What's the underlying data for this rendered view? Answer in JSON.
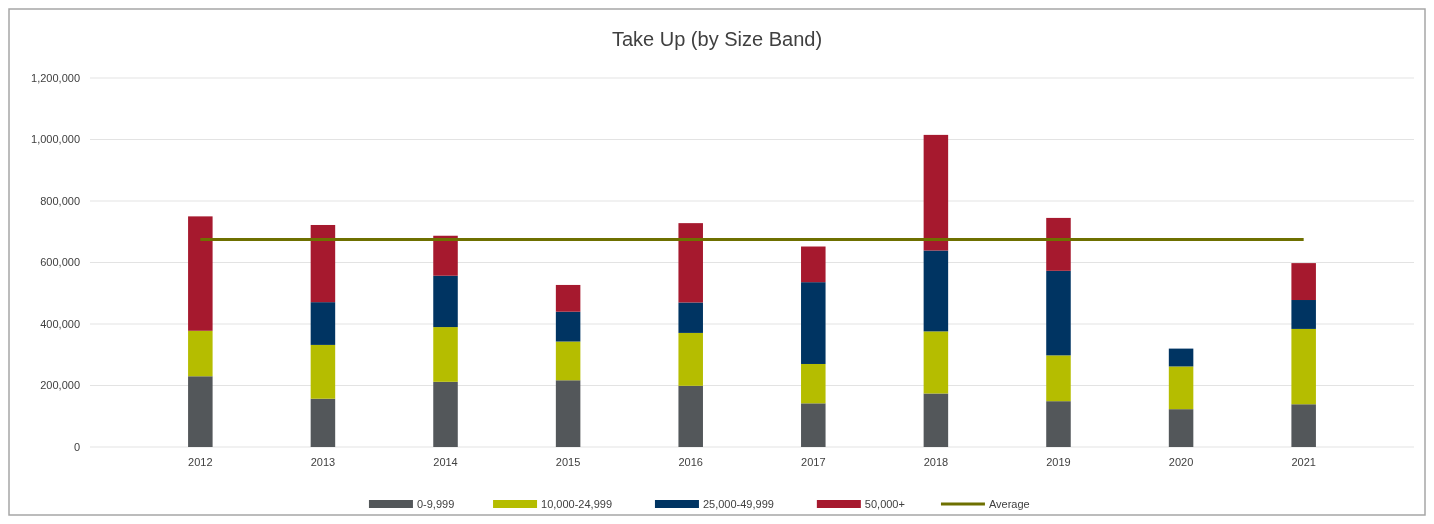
{
  "chart_data": {
    "type": "bar",
    "title": "Take Up (by Size Band)",
    "stacked": true,
    "grid": "y",
    "legend": "bottom",
    "categories": [
      "2012",
      "2013",
      "2014",
      "2015",
      "2016",
      "2017",
      "2018",
      "2019",
      "2020",
      "2021"
    ],
    "ylim": [
      0,
      1200000
    ],
    "yticks": [
      {
        "value": 0,
        "label": "0"
      },
      {
        "value": 200000,
        "label": "200,000"
      },
      {
        "value": 400000,
        "label": "400,000"
      },
      {
        "value": 600000,
        "label": "600,000"
      },
      {
        "value": 800000,
        "label": "800,000"
      },
      {
        "value": 1000000,
        "label": "1,000,000"
      },
      {
        "value": 1200000,
        "label": "1,200,000"
      }
    ],
    "series": [
      {
        "name": "0-9,999",
        "color": "#53575a",
        "values": [
          230000,
          157000,
          212000,
          217000,
          199000,
          142000,
          174000,
          149000,
          123000,
          139000
        ]
      },
      {
        "name": "10,000-24,999",
        "color": "#b5bd00",
        "values": [
          148000,
          175000,
          178000,
          126000,
          172000,
          128000,
          202000,
          149000,
          139000,
          245000
        ]
      },
      {
        "name": "25,000-49,999",
        "color": "#003462",
        "values": [
          0,
          139000,
          167000,
          97000,
          99000,
          266000,
          263000,
          275000,
          58000,
          94000
        ]
      },
      {
        "name": "50,000+",
        "color": "#a6192e",
        "values": [
          372000,
          251000,
          130000,
          87000,
          258000,
          116000,
          376000,
          172000,
          0,
          120000
        ]
      },
      {
        "name": "Average",
        "type": "line",
        "color": "#6e7000",
        "values": [
          675000,
          675000,
          675000,
          675000,
          675000,
          675000,
          675000,
          675000,
          675000,
          675000
        ]
      }
    ]
  }
}
